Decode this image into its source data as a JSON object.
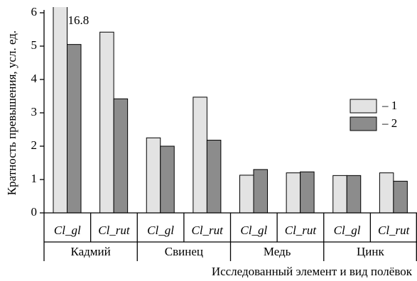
{
  "chart_data": {
    "type": "bar",
    "y_label": "Кратность превышения, усл. ед.",
    "x_label": "Исследованный элемент и вид полёвок",
    "categories": [
      "Cl_gl",
      "Cl_rut",
      "Cl_gl",
      "Cl_rut",
      "Cl_gl",
      "Cl_rut",
      "Cl_gl",
      "Cl_rut"
    ],
    "groups": [
      "Кадмий",
      "Свинец",
      "Медь",
      "Цинк"
    ],
    "series": [
      {
        "name": "– 1",
        "color": "#e3e3e3",
        "values": [
          16.8,
          5.42,
          2.25,
          3.47,
          1.13,
          1.2,
          1.12,
          1.2
        ],
        "value_labels": [
          "16.8",
          null,
          null,
          null,
          null,
          null,
          null,
          null
        ]
      },
      {
        "name": "– 2",
        "color": "#8c8c8c",
        "values": [
          5.05,
          3.42,
          2.0,
          2.18,
          1.3,
          1.23,
          1.12,
          0.95
        ]
      }
    ],
    "ylim": [
      0,
      6
    ],
    "yticks": [
      0,
      1,
      2,
      3,
      4,
      5,
      6
    ],
    "legend": "right"
  }
}
